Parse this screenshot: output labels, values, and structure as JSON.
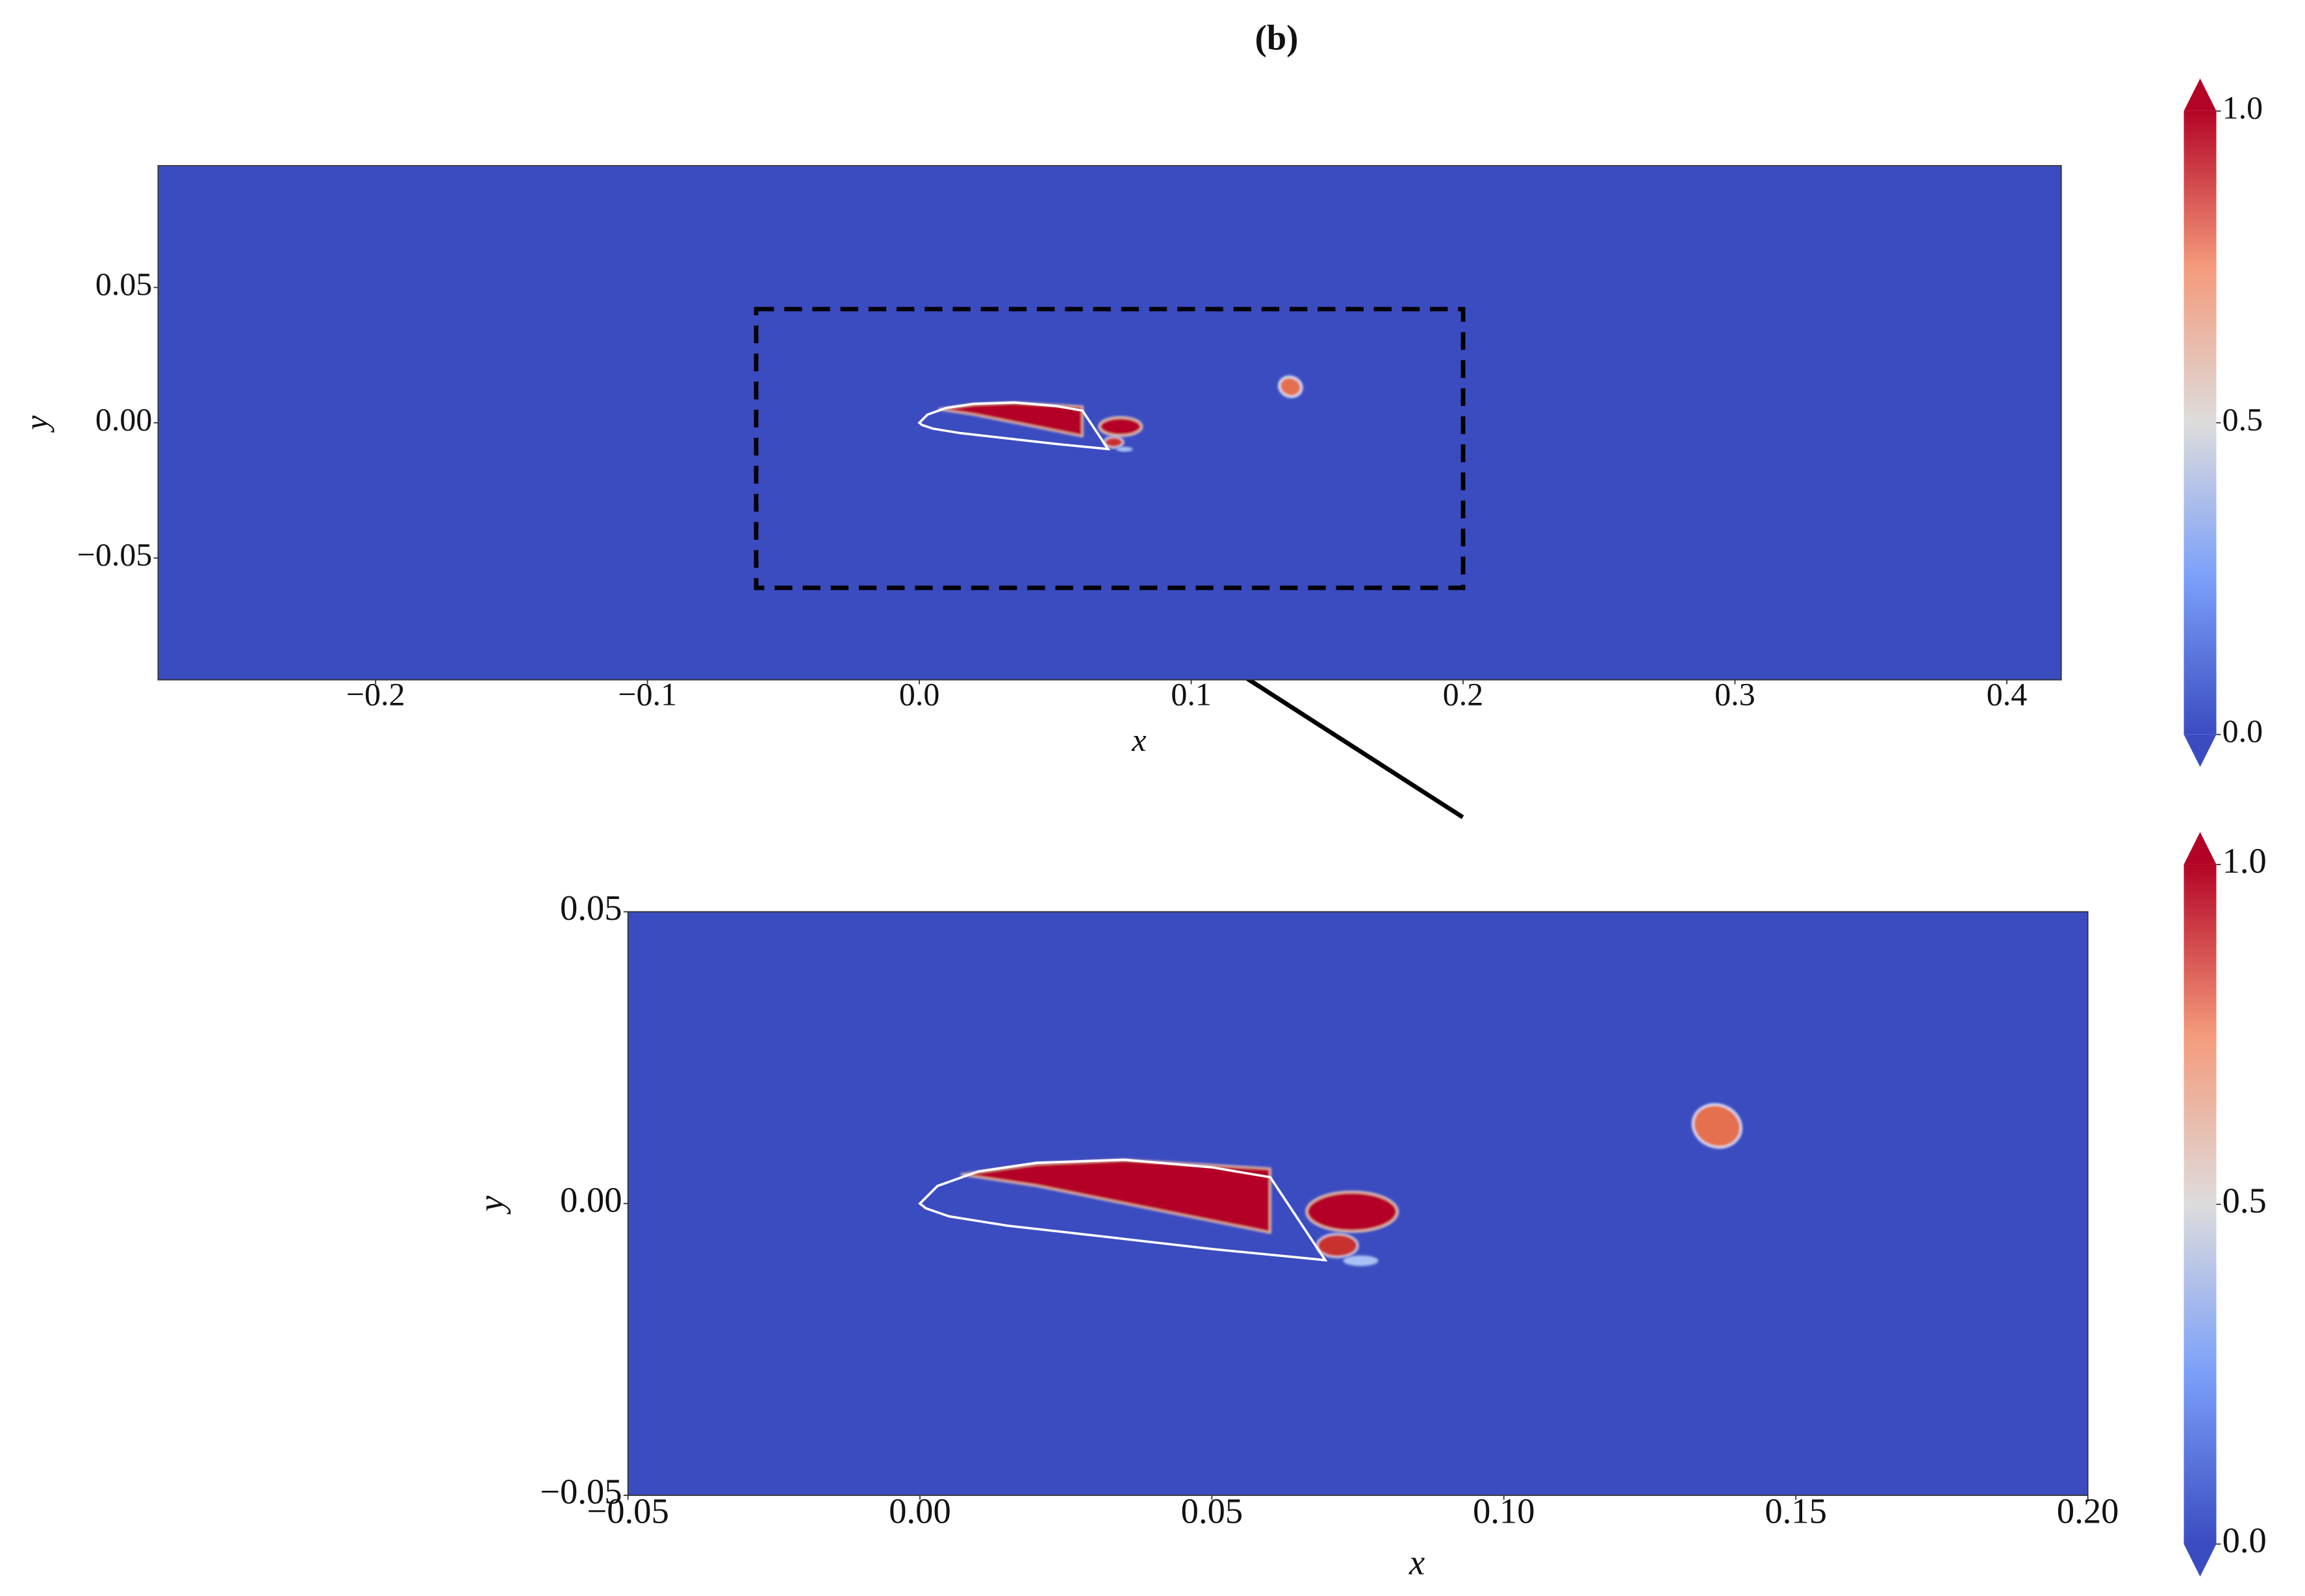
{
  "chart_data": [
    {
      "type": "heatmap",
      "title": "(b)",
      "x_label": "x",
      "y_label": "y",
      "xlim": [
        -0.28,
        0.42
      ],
      "ylim": [
        -0.095,
        0.095
      ],
      "xticks": [
        {
          "value": -0.2,
          "label": "−0.2"
        },
        {
          "value": -0.1,
          "label": "−0.1"
        },
        {
          "value": 0,
          "label": "0.0"
        },
        {
          "value": 0.1,
          "label": "0.1"
        },
        {
          "value": 0.2,
          "label": "0.2"
        },
        {
          "value": 0.3,
          "label": "0.3"
        },
        {
          "value": 0.4,
          "label": "0.4"
        }
      ],
      "yticks": [
        {
          "value": -0.05,
          "label": "−0.05"
        },
        {
          "value": 0,
          "label": "0.00"
        },
        {
          "value": 0.05,
          "label": "0.05"
        }
      ],
      "colorbar": {
        "cmap": "coolwarm",
        "lim": [
          0,
          1
        ],
        "extend": "both",
        "ticks": [
          {
            "value": 0,
            "label": "0.0"
          },
          {
            "value": 0.5,
            "label": "0.5"
          },
          {
            "value": 1,
            "label": "1.0"
          }
        ]
      },
      "zoom_box": {
        "xlim": [
          -0.06,
          0.2
        ],
        "ylim": [
          -0.061,
          0.042
        ]
      }
    },
    {
      "type": "heatmap",
      "x_label": "x",
      "y_label": "y",
      "xlim": [
        -0.05,
        0.2
      ],
      "ylim": [
        -0.05,
        0.05
      ],
      "xticks": [
        {
          "value": -0.05,
          "label": "−0.05"
        },
        {
          "value": 0,
          "label": "0.00"
        },
        {
          "value": 0.05,
          "label": "0.05"
        },
        {
          "value": 0.1,
          "label": "0.10"
        },
        {
          "value": 0.15,
          "label": "0.15"
        },
        {
          "value": 0.2,
          "label": "0.20"
        }
      ],
      "yticks": [
        {
          "value": -0.05,
          "label": "−0.05"
        },
        {
          "value": 0,
          "label": "0.00"
        },
        {
          "value": 0.05,
          "label": "0.05"
        }
      ],
      "colorbar": {
        "cmap": "coolwarm",
        "lim": [
          0,
          1
        ],
        "extend": "both",
        "ticks": [
          {
            "value": 0,
            "label": "0.0"
          },
          {
            "value": 0.5,
            "label": "0.5"
          },
          {
            "value": 1,
            "label": "1.0"
          }
        ]
      }
    }
  ]
}
